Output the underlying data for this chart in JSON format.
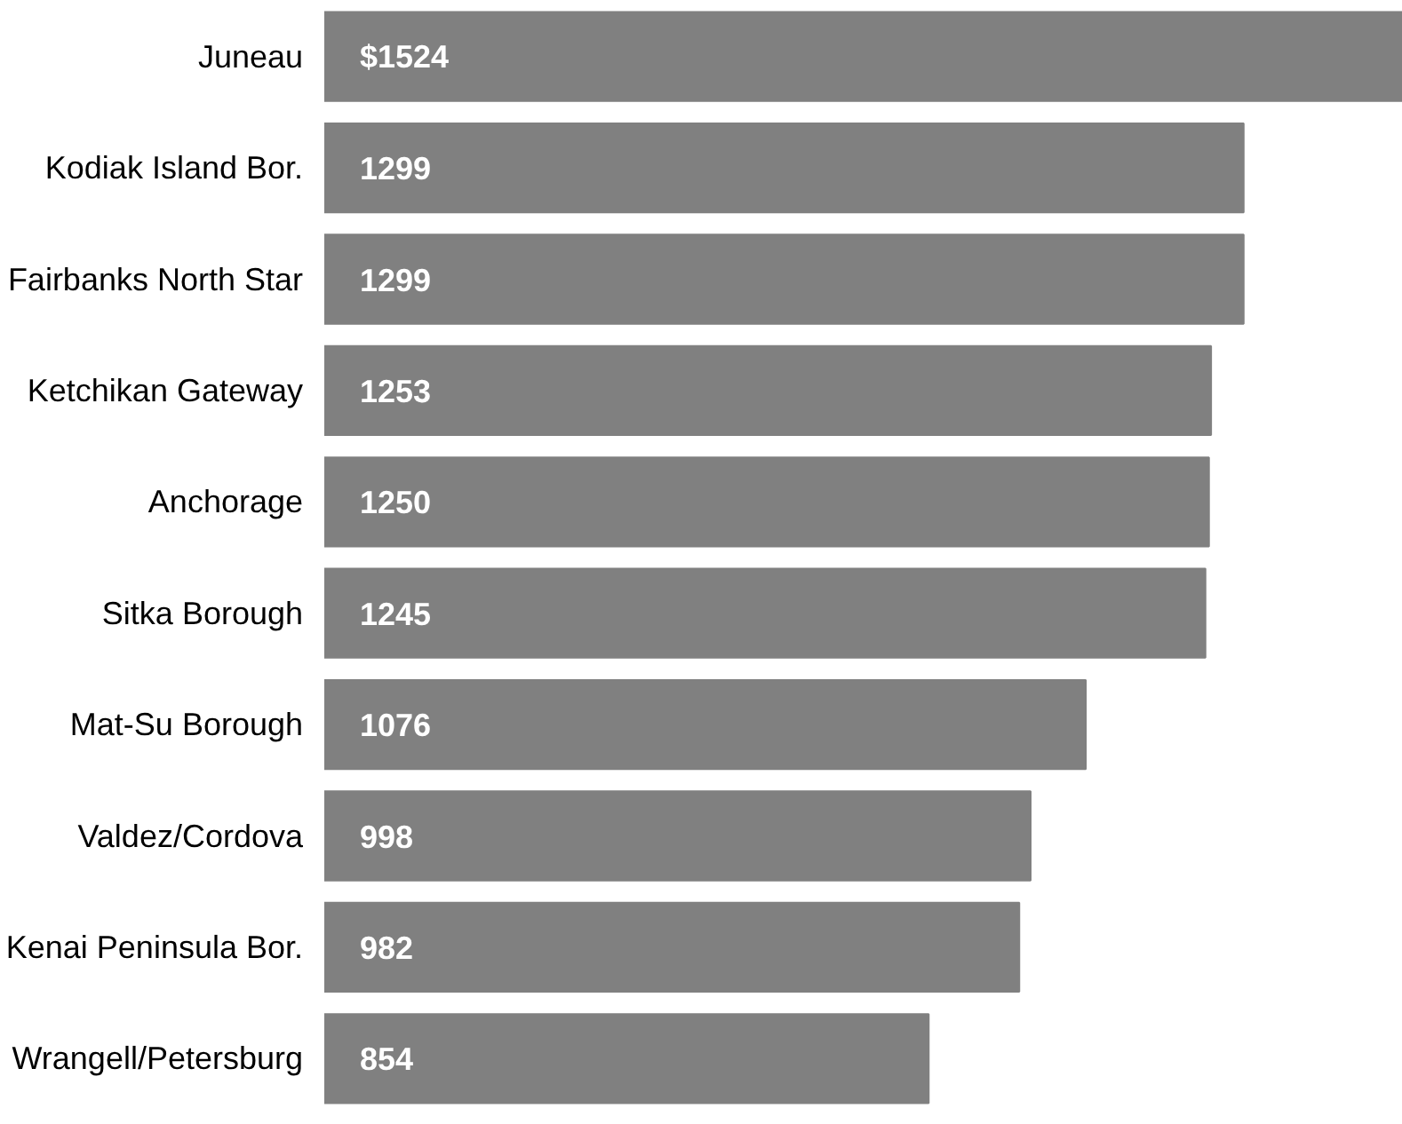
{
  "chart_data": {
    "type": "bar",
    "orientation": "horizontal",
    "categories": [
      "Juneau",
      "Kodiak Island Bor.",
      "Fairbanks North Star",
      "Ketchikan Gateway",
      "Anchorage",
      "Sitka Borough",
      "Mat-Su Borough",
      "Valdez/Cordova",
      "Kenai Peninsula Bor.",
      "Wrangell/Petersburg"
    ],
    "values": [
      1524,
      1299,
      1299,
      1253,
      1250,
      1245,
      1076,
      998,
      982,
      854
    ],
    "value_labels": [
      "$1524",
      "1299",
      "1299",
      "1253",
      "1250",
      "1245",
      "1076",
      "998",
      "982",
      "854"
    ],
    "color": "#808080",
    "grid": false
  }
}
